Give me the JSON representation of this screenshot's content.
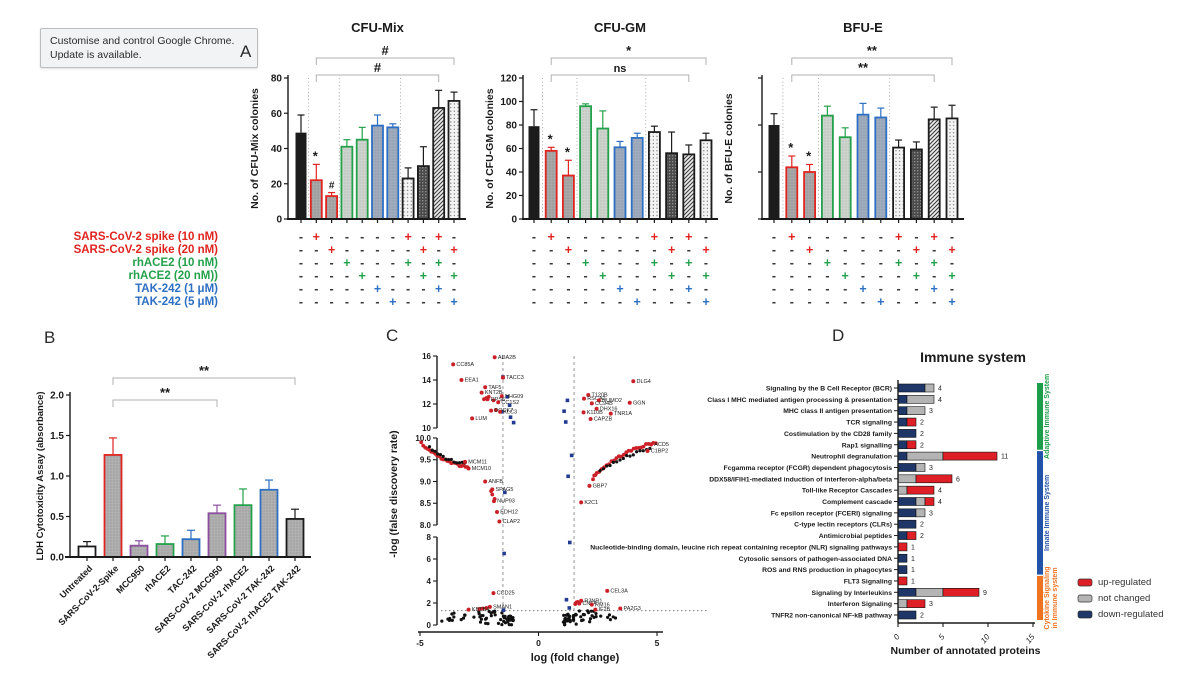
{
  "ui": {
    "tooltip_text": "Customise and control Google Chrome. Update is available.",
    "panel_labels": {
      "a": "A",
      "b": "B",
      "c": "C",
      "d": "D"
    }
  },
  "colors": {
    "red": "#e02420",
    "green": "#23a14b",
    "blue": "#2d6fc2",
    "purple": "#8c4fa0",
    "black": "#1c1c1c",
    "volcano_red": "#cb2027",
    "volcano_blue": "#223a8f",
    "bar_red": "#df1f26",
    "bar_gray": "#b4b4b4",
    "bar_navy": "#1e3768",
    "adaptive_green": "#1e9e4a",
    "innate_blue": "#2353a8",
    "cytokine_orange": "#f07322",
    "bracket_gray": "#b0b0b0"
  },
  "panel_a_shared": {
    "row_labels": [
      {
        "text": "SARS-CoV-2 spike (10 nM)",
        "color": "red"
      },
      {
        "text": "SARS-CoV-2 spike (20 nM)",
        "color": "red"
      },
      {
        "text": "rhACE2 (10 nM)",
        "color": "green"
      },
      {
        "text": "rhACE2 (20 nM))",
        "color": "green"
      },
      {
        "text": "TAK-242 (1 μM)",
        "color": "blue"
      },
      {
        "text": "TAK-242 (5 μM)",
        "color": "blue"
      }
    ],
    "matrix": [
      [
        "-",
        "+",
        "-",
        "-",
        "-",
        "-",
        "-",
        "+",
        "-",
        "+",
        "-"
      ],
      [
        "-",
        "-",
        "+",
        "-",
        "-",
        "-",
        "-",
        "-",
        "+",
        "-",
        "+"
      ],
      [
        "-",
        "-",
        "-",
        "+",
        "-",
        "-",
        "-",
        "+",
        "-",
        "+",
        "-"
      ],
      [
        "-",
        "-",
        "-",
        "-",
        "+",
        "-",
        "-",
        "-",
        "+",
        "-",
        "+"
      ],
      [
        "-",
        "-",
        "-",
        "-",
        "-",
        "+",
        "-",
        "-",
        "-",
        "+",
        "-"
      ],
      [
        "-",
        "-",
        "-",
        "-",
        "-",
        "-",
        "+",
        "-",
        "-",
        "-",
        "+"
      ]
    ],
    "matrix_row_colors": [
      "red",
      "red",
      "green",
      "green",
      "blue",
      "blue"
    ],
    "bar_strokes": [
      "black",
      "red",
      "red",
      "green",
      "green",
      "blue",
      "blue",
      "black",
      "black",
      "black",
      "black"
    ],
    "bar_fills": [
      "solid",
      "gray-dots",
      "gray-dots",
      "green-dots",
      "green-dots",
      "blue-dots",
      "blue-dots",
      "light-dots",
      "dark-dots",
      "hatch",
      "light-dots"
    ]
  },
  "chart_data": [
    {
      "id": "cfu-mix",
      "type": "bar",
      "panel": "A",
      "title": "CFU-Mix",
      "ylabel": "No. of CFU-Mix colonies",
      "ylim": [
        0,
        80
      ],
      "yticks": [
        0,
        20,
        40,
        60,
        80
      ],
      "ytick_labels_visible": true,
      "values": [
        49,
        22,
        13,
        41,
        45,
        53,
        52,
        23,
        30,
        63,
        67
      ],
      "errors": [
        10,
        9,
        2,
        4,
        7,
        6,
        2,
        6,
        11,
        10,
        5
      ],
      "sig_on_bars": {
        "1": "*",
        "2": "#"
      },
      "sig_brackets": [
        {
          "from_bar": 1,
          "to_bar": 9,
          "label": "#"
        },
        {
          "from_bar": 1,
          "to_bar": 10,
          "label": "#"
        }
      ]
    },
    {
      "id": "cfu-gm",
      "type": "bar",
      "panel": "A",
      "title": "CFU-GM",
      "ylabel": "No. of CFU-GM colonies",
      "ylim": [
        0,
        120
      ],
      "yticks": [
        0,
        20,
        40,
        60,
        80,
        100,
        120
      ],
      "ytick_labels_visible": true,
      "values": [
        79,
        58,
        37,
        96,
        77,
        61,
        69,
        74,
        56,
        55,
        67
      ],
      "errors": [
        14,
        3,
        13,
        2,
        15,
        5,
        4,
        5,
        18,
        8,
        6
      ],
      "sig_on_bars": {
        "1": "*",
        "2": "*"
      },
      "sig_brackets": [
        {
          "from_bar": 1,
          "to_bar": 9,
          "label": "ns"
        },
        {
          "from_bar": 1,
          "to_bar": 10,
          "label": "*"
        }
      ]
    },
    {
      "id": "bfu-e",
      "type": "bar",
      "panel": "A",
      "title": "BFU-E",
      "ylabel": "No. of BFU-E colonies",
      "ylim": [
        0,
        150
      ],
      "yticks": [
        0,
        50,
        100,
        150
      ],
      "ytick_labels_visible": false,
      "values": [
        100,
        55,
        50,
        110,
        87,
        111,
        108,
        76,
        74,
        106,
        107
      ],
      "errors": [
        12,
        12,
        8,
        10,
        10,
        12,
        10,
        8,
        8,
        13,
        14
      ],
      "sig_on_bars": {
        "1": "*",
        "2": "*"
      },
      "sig_brackets": [
        {
          "from_bar": 1,
          "to_bar": 9,
          "label": "**"
        },
        {
          "from_bar": 1,
          "to_bar": 10,
          "label": "**"
        }
      ]
    },
    {
      "id": "ldh",
      "type": "bar",
      "panel": "B",
      "ylabel": "LDH Cytotoxicity Assay (absorbance)",
      "ylim": [
        0,
        2.0
      ],
      "yticks": [
        0,
        0.5,
        1.0,
        1.5,
        2.0
      ],
      "categories": [
        "Untreated",
        "SARS-CoV-2-Spike",
        "MCC950",
        "rhACE2",
        "TAC-242",
        "SARS-CoV-2 MCC950",
        "SARS-CoV-2 rhACE2",
        "SARS-CoV-2 TAK-242",
        "SARS-CoV-2 rhACE2 TAK-242"
      ],
      "values": [
        0.13,
        1.26,
        0.14,
        0.16,
        0.22,
        0.54,
        0.64,
        0.83,
        0.47
      ],
      "errors": [
        0.06,
        0.21,
        0.06,
        0.1,
        0.11,
        0.1,
        0.2,
        0.12,
        0.12
      ],
      "outline_colors": [
        "black",
        "red",
        "purple",
        "green",
        "blue",
        "purple",
        "green",
        "blue",
        "black"
      ],
      "sig_brackets": [
        {
          "from_bar": 1,
          "to_bar": 5,
          "label": "**"
        },
        {
          "from_bar": 1,
          "to_bar": 8,
          "label": "**"
        }
      ]
    },
    {
      "id": "volcano",
      "type": "scatter",
      "panel": "C",
      "xlabel": "log (fold change)",
      "ylabel": "-log (false discovery rate)",
      "xlim": [
        -5,
        5
      ],
      "xticks": [
        -5,
        0,
        5
      ],
      "y_axis_segments": [
        {
          "range": [
            0,
            8
          ],
          "ticks": [
            "0",
            "2",
            "4",
            "6",
            "8"
          ]
        },
        {
          "range": [
            8,
            10
          ],
          "ticks": [
            "8.0",
            "8.5",
            "9.0",
            "9.5",
            "10.0"
          ]
        },
        {
          "range": [
            10,
            16
          ],
          "ticks": [
            "10",
            "12",
            "14",
            "16"
          ]
        }
      ],
      "threshold_vlines": [
        -1.5,
        1.5
      ],
      "threshold_hline": 1.3,
      "labeled_points": [
        {
          "label": "ADA2B",
          "x": -1.85,
          "y": 15.9
        },
        {
          "label": "CC85A",
          "x": -3.6,
          "y": 15.3
        },
        {
          "label": "EEA1",
          "x": -3.25,
          "y": 14.0
        },
        {
          "label": "TACC3",
          "x": -1.5,
          "y": 14.2
        },
        {
          "label": "TAF5",
          "x": -2.25,
          "y": 13.4
        },
        {
          "label": "KNT2B",
          "x": -2.4,
          "y": 12.95
        },
        {
          "label": "NHG09",
          "x": -1.55,
          "y": 12.65
        },
        {
          "label": "RPS6",
          "x": -2.15,
          "y": 12.4
        },
        {
          "label": "CC1S2",
          "x": -1.7,
          "y": 12.15
        },
        {
          "label": "DOCK7",
          "x": -2.0,
          "y": 11.45
        },
        {
          "label": "KLC3",
          "x": -1.62,
          "y": 11.35
        },
        {
          "label": "LUM",
          "x": -2.8,
          "y": 10.8
        },
        {
          "label": "DLG4",
          "x": 4.0,
          "y": 13.9
        },
        {
          "label": "T120B",
          "x": 2.1,
          "y": 12.75
        },
        {
          "label": "RSCA1",
          "x": 1.92,
          "y": 12.45
        },
        {
          "label": "NUMO2",
          "x": 2.55,
          "y": 12.3
        },
        {
          "label": "CC94B",
          "x": 2.25,
          "y": 12.05
        },
        {
          "label": "GGN",
          "x": 3.85,
          "y": 12.1
        },
        {
          "label": "DHX16",
          "x": 2.45,
          "y": 11.6
        },
        {
          "label": "K110B",
          "x": 1.9,
          "y": 11.3
        },
        {
          "label": "TNR1A",
          "x": 3.05,
          "y": 11.2
        },
        {
          "label": "CAPZB",
          "x": 2.2,
          "y": 10.75
        },
        {
          "label": "MCM11",
          "x": -3.1,
          "y": 9.45
        },
        {
          "label": "MCM10",
          "x": -2.95,
          "y": 9.3
        },
        {
          "label": "ANFB",
          "x": -2.25,
          "y": 9.0
        },
        {
          "label": "SPAG5",
          "x": -1.95,
          "y": 8.82
        },
        {
          "label": "NUP93",
          "x": -1.88,
          "y": 8.55
        },
        {
          "label": "EDH12",
          "x": -1.75,
          "y": 8.3
        },
        {
          "label": "CLAP2",
          "x": -1.65,
          "y": 8.08
        },
        {
          "label": "ACD5",
          "x": 4.75,
          "y": 9.85
        },
        {
          "label": "C1BP2",
          "x": 4.6,
          "y": 9.7
        },
        {
          "label": "GBP7",
          "x": 2.15,
          "y": 8.9
        },
        {
          "label": "K2C1",
          "x": 1.8,
          "y": 8.52
        },
        {
          "label": "CCD25",
          "x": -1.9,
          "y": 2.9
        },
        {
          "label": "SMAN1",
          "x": -2.05,
          "y": 1.65
        },
        {
          "label": "KBTB4",
          "x": -2.95,
          "y": 1.4
        },
        {
          "label": "CEL3A",
          "x": 2.9,
          "y": 3.1
        },
        {
          "label": "R3NR1",
          "x": 1.8,
          "y": 2.2
        },
        {
          "label": "CNF4",
          "x": 1.72,
          "y": 1.95
        },
        {
          "label": "RM16",
          "x": 2.25,
          "y": 1.85
        },
        {
          "label": "IF2B",
          "x": 2.4,
          "y": 1.4
        },
        {
          "label": "PA2G3",
          "x": 3.45,
          "y": 1.5
        }
      ],
      "blue_points": [
        [
          -1.5,
          14.25
        ],
        [
          -1.32,
          12.6
        ],
        [
          -1.22,
          11.9
        ],
        [
          -1.55,
          11.35
        ],
        [
          -1.18,
          10.9
        ],
        [
          -1.05,
          10.45
        ],
        [
          1.22,
          12.3
        ],
        [
          1.08,
          11.4
        ],
        [
          1.15,
          10.5
        ],
        [
          1.4,
          9.6
        ],
        [
          1.25,
          9.12
        ],
        [
          -1.42,
          8.75
        ],
        [
          -1.45,
          6.5
        ],
        [
          1.32,
          7.5
        ],
        [
          1.3,
          1.55
        ],
        [
          -1.48,
          1.35
        ],
        [
          1.18,
          2.3
        ]
      ],
      "red_points": [
        [
          -2.2,
          12.5
        ],
        [
          -2.1,
          12.6
        ],
        [
          -2.3,
          12.4
        ],
        [
          -1.9,
          12.3
        ],
        [
          -1.8,
          11.5
        ],
        [
          -1.95,
          8.7
        ],
        [
          -1.85,
          8.6
        ],
        [
          -2.0,
          8.78
        ],
        [
          1.6,
          2.05
        ],
        [
          1.65,
          2.1
        ],
        [
          1.55,
          1.9
        ],
        [
          -2.2,
          1.55
        ],
        [
          -2.35,
          1.5
        ],
        [
          -2.5,
          1.45
        ],
        [
          2.3,
          9.05
        ],
        [
          2.4,
          9.15
        ]
      ],
      "arcs": [
        {
          "x0": -4.95,
          "y0": 9.88,
          "x1": -3.0,
          "y1": 9.35,
          "n": 24,
          "color": "red",
          "bend": -0.12
        },
        {
          "x0": -4.6,
          "y0": 9.78,
          "x1": -3.1,
          "y1": 9.42,
          "n": 14,
          "color": "black",
          "bend": -0.08
        },
        {
          "x0": 2.35,
          "y0": 9.15,
          "x1": 4.95,
          "y1": 9.9,
          "n": 26,
          "color": "red",
          "bend": 0.12
        },
        {
          "x0": 2.6,
          "y0": 9.25,
          "x1": 4.7,
          "y1": 9.75,
          "n": 16,
          "color": "black",
          "bend": 0.06
        }
      ],
      "black_scatter_regions": [
        {
          "x": [
            -4.1,
            -2.3
          ],
          "y": [
            0.3,
            1.1
          ],
          "n": 14
        },
        {
          "x": [
            -2.6,
            -1.5
          ],
          "y": [
            0.1,
            1.3
          ],
          "n": 22
        },
        {
          "x": [
            -1.55,
            -1.05
          ],
          "y": [
            0.02,
            0.8
          ],
          "n": 26
        },
        {
          "x": [
            1.0,
            1.6
          ],
          "y": [
            0.02,
            1.0
          ],
          "n": 28
        },
        {
          "x": [
            1.5,
            2.5
          ],
          "y": [
            0.1,
            1.3
          ],
          "n": 18
        },
        {
          "x": [
            2.5,
            3.4
          ],
          "y": [
            0.3,
            1.0
          ],
          "n": 6
        }
      ]
    },
    {
      "id": "immune",
      "type": "bar",
      "orientation": "horizontal",
      "panel": "D",
      "title": "Immune system",
      "xlabel": "Number of annotated proteins",
      "xlim": [
        0,
        15
      ],
      "xticks": [
        0,
        5,
        10,
        15
      ],
      "rows": [
        {
          "label": "Signaling by the B Cell Receptor (BCR)",
          "down": 3,
          "not_changed": 1,
          "up": 0,
          "total": 4
        },
        {
          "label": "Class I MHC mediated antigen processing & presentation",
          "down": 1,
          "not_changed": 3,
          "up": 0,
          "total": 4
        },
        {
          "label": "MHC class II antigen presentation",
          "down": 1,
          "not_changed": 2,
          "up": 0,
          "total": 3
        },
        {
          "label": "TCR signaling",
          "down": 1,
          "not_changed": 0,
          "up": 1,
          "total": 2
        },
        {
          "label": "Costimulation by the CD28 family",
          "down": 2,
          "not_changed": 0,
          "up": 0,
          "total": 2
        },
        {
          "label": "Rap1 signalling",
          "down": 1,
          "not_changed": 0,
          "up": 1,
          "total": 2
        },
        {
          "label": "Neutrophil degranulation",
          "down": 1,
          "not_changed": 4,
          "up": 6,
          "total": 11
        },
        {
          "label": "Fcgamma receptor (FCGR) dependent phagocytosis",
          "down": 2,
          "not_changed": 1,
          "up": 0,
          "total": 3
        },
        {
          "label": "DDX58/IFIH1-mediated induction of interferon-alpha/beta",
          "down": 0,
          "not_changed": 2,
          "up": 4,
          "total": 6
        },
        {
          "label": "Toll-like Receptor Cascades",
          "down": 0,
          "not_changed": 1,
          "up": 3,
          "total": 4
        },
        {
          "label": "Complement cascade",
          "down": 2,
          "not_changed": 1,
          "up": 1,
          "total": 4
        },
        {
          "label": "Fc epsilon receptor (FCERI) signaling",
          "down": 2,
          "not_changed": 1,
          "up": 0,
          "total": 3
        },
        {
          "label": "C-type lectin receptors (CLRs)",
          "down": 2,
          "not_changed": 0,
          "up": 0,
          "total": 2
        },
        {
          "label": "Antimicrobial peptides",
          "down": 1,
          "not_changed": 0,
          "up": 1,
          "total": 2
        },
        {
          "label": "Nucleotide-binding domain, leucine rich repeat containing receptor (NLR) signaling pathways",
          "down": 0,
          "not_changed": 0,
          "up": 1,
          "total": 1
        },
        {
          "label": "Cytosolic sensors of pathogen-associated DNA",
          "down": 1,
          "not_changed": 0,
          "up": 0,
          "total": 1
        },
        {
          "label": "ROS and RNS production in phagocytes",
          "down": 1,
          "not_changed": 0,
          "up": 0,
          "total": 1
        },
        {
          "label": "FLT3 Signaling",
          "down": 0,
          "not_changed": 0,
          "up": 1,
          "total": 1
        },
        {
          "label": "Signaling by Interleukins",
          "down": 2,
          "not_changed": 3,
          "up": 4,
          "total": 9
        },
        {
          "label": "Interferon Signaling",
          "down": 0,
          "not_changed": 1,
          "up": 2,
          "total": 3
        },
        {
          "label": "TNFR2 non-canonical NF-kB pathway",
          "down": 2,
          "not_changed": 0,
          "up": 0,
          "total": 2
        }
      ],
      "legend": [
        {
          "label": "up-regulated",
          "key": "up"
        },
        {
          "label": "not changed",
          "key": "not_changed"
        },
        {
          "label": "down-regulated",
          "key": "down"
        }
      ],
      "categories": [
        {
          "label": "Adaptive Immune System",
          "rows": [
            0,
            5
          ],
          "color": "adaptive_green",
          "lines": [
            "Adaptive Immune System"
          ]
        },
        {
          "label": "Innate Immune System",
          "rows": [
            6,
            16
          ],
          "color": "innate_blue",
          "lines": [
            "Innate Immune System"
          ]
        },
        {
          "label": "Cytokine Signaling in Immune system",
          "rows": [
            17,
            20
          ],
          "color": "cytokine_orange",
          "lines": [
            "Cytokine Signaling",
            "in Immune system"
          ]
        }
      ]
    }
  ]
}
